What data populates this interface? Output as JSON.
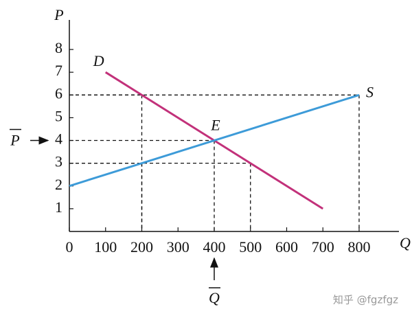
{
  "chart_data": {
    "type": "line",
    "x_label": "Q",
    "y_label": "P",
    "xlim": [
      0,
      910
    ],
    "ylim": [
      0,
      9.3
    ],
    "xticks": [
      0,
      100,
      200,
      300,
      400,
      500,
      600,
      700,
      800
    ],
    "yticks": [
      1,
      2,
      3,
      4,
      5,
      6,
      7,
      8
    ],
    "series": [
      {
        "name": "D",
        "color": "#c2317a",
        "x": [
          100,
          700
        ],
        "values": [
          7,
          1
        ]
      },
      {
        "name": "S",
        "color": "#3d9bd8",
        "x": [
          0,
          800
        ],
        "values": [
          2,
          6
        ]
      }
    ],
    "guides": [
      {
        "x": 200,
        "y": 6
      },
      {
        "x": 800,
        "y": 6
      },
      {
        "x": 400,
        "y": 4
      },
      {
        "x": 200,
        "y": 3
      },
      {
        "x": 500,
        "y": 3
      }
    ],
    "equilibrium": {
      "label": "E",
      "quantity": 400,
      "price": 4,
      "price_label": "P",
      "quantity_label": "Q"
    },
    "watermark": "知乎 @fgzfgz"
  }
}
